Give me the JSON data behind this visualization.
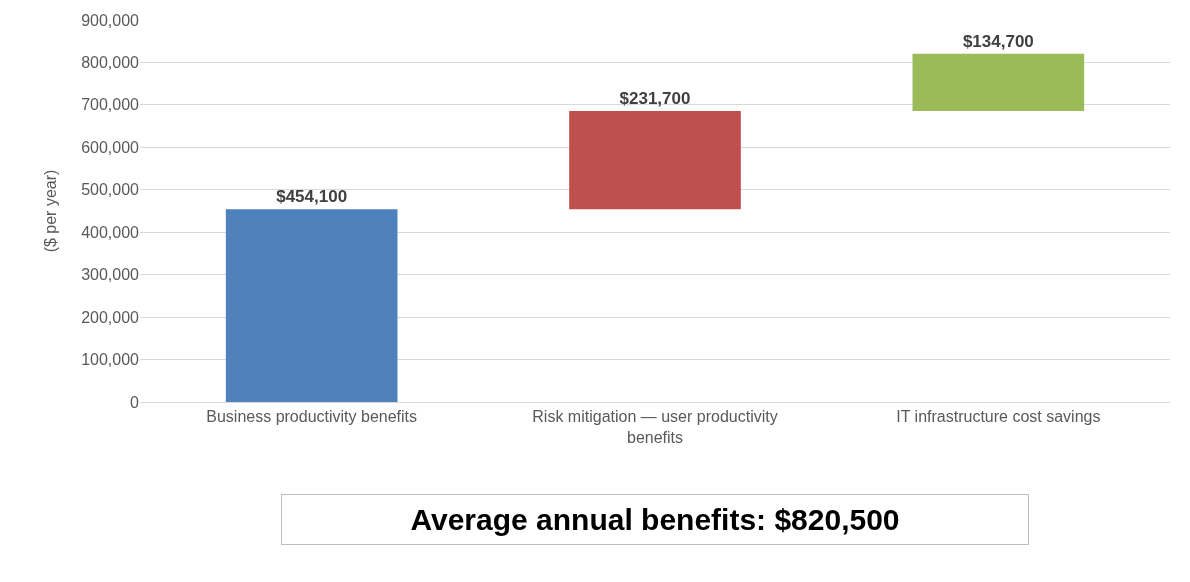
{
  "chart_data": {
    "type": "bar",
    "ylabel": "($ per year)",
    "categories": [
      "Business productivity benefits",
      "Risk mitigation — user productivity benefits",
      "IT infrastructure cost savings"
    ],
    "values": [
      454100,
      231700,
      134700
    ],
    "base": [
      0,
      454100,
      685800
    ],
    "colors": [
      "#4f81bd",
      "#c0504d",
      "#9bbb59"
    ],
    "value_labels": [
      "$454,100",
      "$231,700",
      "$134,700"
    ],
    "ylim": [
      0,
      900000
    ],
    "yticks": [
      0,
      {
        "value": 100000,
        "label": "100,000"
      },
      {
        "value": 200000,
        "label": "200,000"
      },
      {
        "value": 300000,
        "label": "300,000"
      },
      {
        "value": 400000,
        "label": "400,000"
      },
      {
        "value": 500000,
        "label": "500,000"
      },
      {
        "value": 600000,
        "label": "600,000"
      },
      {
        "value": 700000,
        "label": "700,000"
      },
      {
        "value": 800000,
        "label": "800,000"
      },
      {
        "value": 900000,
        "label": "900,000"
      }
    ],
    "grid": "y",
    "annotations": [
      "Average annual benefits: $820,500"
    ]
  }
}
